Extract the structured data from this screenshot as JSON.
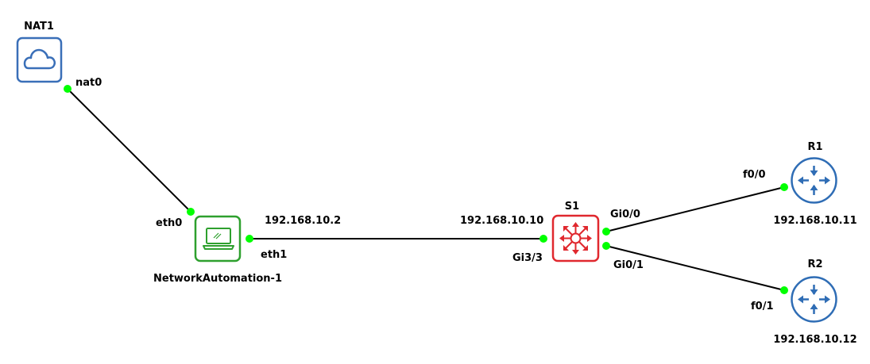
{
  "colors": {
    "link": "#000000",
    "port_up": "#00ff00",
    "cloud": "#3a6fb8",
    "host": "#2ea02e",
    "switch": "#e0282e",
    "router": "#2f6db5"
  },
  "nodes": {
    "nat1": {
      "label": "NAT1",
      "icon": "cloud-icon"
    },
    "host": {
      "label": "NetworkAutomation-1",
      "icon": "laptop-icon"
    },
    "s1": {
      "label": "S1",
      "icon": "multilayer-switch-icon"
    },
    "r1": {
      "label": "R1",
      "icon": "router-icon",
      "ip": "192.168.10.11"
    },
    "r2": {
      "label": "R2",
      "icon": "router-icon",
      "ip": "192.168.10.12"
    }
  },
  "links": {
    "nat_host": {
      "a_port": "nat0",
      "b_port": "eth0"
    },
    "host_s1": {
      "a_port": "eth1",
      "b_port": "Gi3/3",
      "a_ip": "192.168.10.2",
      "b_ip": "192.168.10.10"
    },
    "s1_r1": {
      "a_port": "Gi0/0",
      "b_port": "f0/0"
    },
    "s1_r2": {
      "a_port": "Gi0/1",
      "b_port": "f0/1"
    }
  }
}
